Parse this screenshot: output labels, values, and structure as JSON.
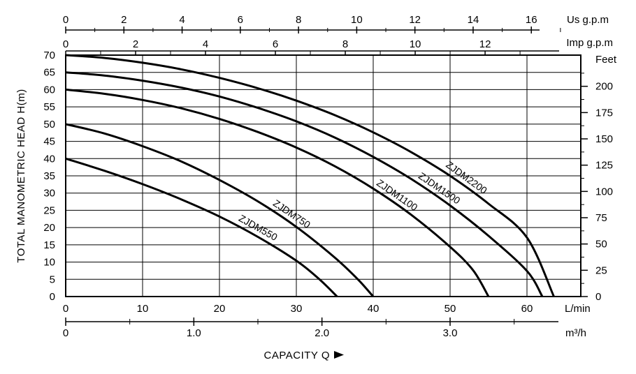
{
  "chart_data": {
    "type": "line",
    "xlabel": "CAPACITY Q",
    "ylabel": "TOTAL MANOMETRIC HEAD H(m)",
    "x_unit": "L/min",
    "y_unit": "",
    "xlim": [
      0,
      67
    ],
    "ylim": [
      0,
      70
    ],
    "grid": true,
    "x_ticks": [
      "0",
      "10",
      "20",
      "30",
      "40",
      "50",
      "60"
    ],
    "y_ticks": [
      "0",
      "5",
      "10",
      "15",
      "20",
      "25",
      "30",
      "35",
      "40",
      "45",
      "50",
      "55",
      "60",
      "65",
      "70"
    ],
    "secondary_axes": {
      "us_gpm": {
        "unit": "Us g.p.m",
        "ticks": [
          "0",
          "2",
          "4",
          "6",
          "8",
          "10",
          "12",
          "14",
          "16"
        ]
      },
      "imp_gpm": {
        "unit": "Imp g.p.m",
        "ticks": [
          "0",
          "2",
          "4",
          "6",
          "8",
          "10",
          "12"
        ]
      },
      "feet": {
        "unit": "Feet",
        "ticks": [
          "0",
          "25",
          "50",
          "75",
          "100",
          "125",
          "150",
          "175",
          "200"
        ]
      },
      "m3h": {
        "unit": "m³/h",
        "ticks": [
          "0",
          "1.0",
          "2.0",
          "3.0"
        ]
      }
    },
    "series": [
      {
        "name": "ZJDM550",
        "x": [
          0,
          5,
          10,
          15,
          20,
          25,
          30,
          33,
          35.3
        ],
        "y": [
          40,
          36.5,
          32.6,
          28.2,
          23.2,
          17.3,
          10.4,
          5,
          0
        ]
      },
      {
        "name": "ZJDM750",
        "x": [
          0,
          5,
          10,
          15,
          20,
          25,
          30,
          35,
          38,
          40
        ],
        "y": [
          50,
          47.3,
          43.6,
          39.2,
          33.8,
          27.6,
          20.2,
          11.3,
          5,
          0
        ]
      },
      {
        "name": "ZJDM1100",
        "x": [
          0,
          5,
          10,
          15,
          20,
          25,
          30,
          35,
          40,
          45,
          50,
          53,
          55
        ],
        "y": [
          60,
          58.8,
          57.0,
          54.6,
          51.5,
          47.7,
          43.2,
          37.8,
          31.3,
          23.6,
          14.4,
          7.6,
          0
        ]
      },
      {
        "name": "ZJDM1500",
        "x": [
          0,
          5,
          10,
          15,
          20,
          25,
          30,
          35,
          40,
          45,
          50,
          55,
          60,
          62
        ],
        "y": [
          65,
          64.1,
          62.6,
          60.6,
          58.0,
          54.7,
          50.8,
          46.1,
          40.5,
          34.0,
          26.4,
          17.6,
          7.4,
          0
        ]
      },
      {
        "name": "ZJDM2200",
        "x": [
          0,
          5,
          10,
          15,
          20,
          25,
          30,
          35,
          40,
          45,
          50,
          55,
          60,
          63.5
        ],
        "y": [
          70,
          69.2,
          67.8,
          65.9,
          63.4,
          60.4,
          56.8,
          52.6,
          47.6,
          41.8,
          35.0,
          26.9,
          17.1,
          0
        ]
      }
    ]
  }
}
